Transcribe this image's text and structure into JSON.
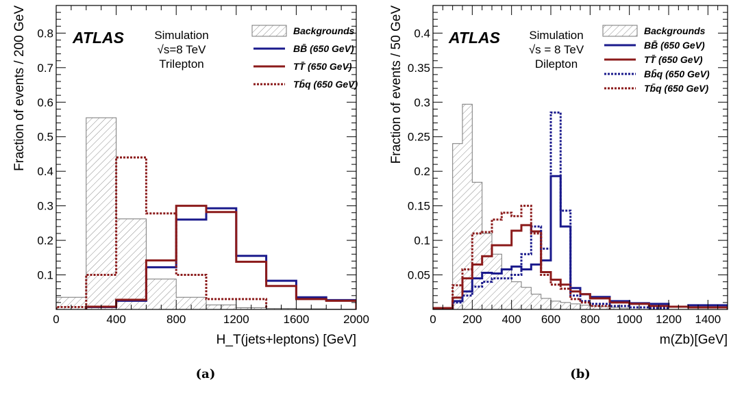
{
  "chart_data": [
    {
      "type": "histogram",
      "panel_label": "(a)",
      "xlabel": "H_T(jets+leptons) [GeV]",
      "ylabel": "Fraction of events / 200 GeV",
      "xlim": [
        0,
        2000
      ],
      "ylim": [
        0,
        0.88
      ],
      "xticks": [
        0,
        400,
        800,
        1200,
        1600,
        2000
      ],
      "xtick_labels": [
        "0",
        "400",
        "800",
        "1200",
        "1600",
        "2000"
      ],
      "yticks": [
        0.1,
        0.2,
        0.3,
        0.4,
        0.5,
        0.6,
        0.7,
        0.8
      ],
      "ytick_labels": [
        "0.1",
        "0.2",
        "0.3",
        "0.4",
        "0.5",
        "0.6",
        "0.7",
        "0.8"
      ],
      "brand": "ATLAS",
      "info_lines": [
        "Simulation",
        "√s=8 TeV",
        "Trilepton"
      ],
      "legend_position": "top-right",
      "series": [
        {
          "name": "Backgrounds",
          "style": "hatched",
          "color": "#777777",
          "edges": [
            0,
            200,
            400,
            600,
            800,
            1000,
            1200,
            1400,
            1600,
            1800,
            2000
          ],
          "values": [
            0.035,
            0.555,
            0.262,
            0.088,
            0.035,
            0.013,
            0.005,
            0.003,
            0.002,
            0.001
          ]
        },
        {
          "name": "BB̄ (650 GeV)",
          "style": "solid",
          "color": "#1a1a8c",
          "edges": [
            200,
            400,
            600,
            800,
            1000,
            1200,
            1400,
            1600,
            1800,
            2000
          ],
          "values": [
            0.007,
            0.025,
            0.122,
            0.26,
            0.293,
            0.155,
            0.083,
            0.035,
            0.027
          ]
        },
        {
          "name": "TT̄ (650 GeV)",
          "style": "solid",
          "color": "#8b1a1a",
          "edges": [
            200,
            400,
            600,
            800,
            1000,
            1200,
            1400,
            1600,
            1800,
            2000
          ],
          "values": [
            0.008,
            0.028,
            0.142,
            0.3,
            0.282,
            0.138,
            0.068,
            0.03,
            0.025
          ]
        },
        {
          "name": "Tb̄q (650 GeV)",
          "style": "dotted",
          "color": "#8b1a1a",
          "edges": [
            0,
            200,
            400,
            600,
            800,
            1000,
            1200,
            1400
          ],
          "values": [
            0.007,
            0.1,
            0.44,
            0.278,
            0.1,
            0.03,
            0.03
          ]
        }
      ]
    },
    {
      "type": "histogram",
      "panel_label": "(b)",
      "xlabel": "m(Zb)[GeV]",
      "ylabel": "Fraction of events / 50 GeV",
      "xlim": [
        0,
        1500
      ],
      "ylim": [
        0,
        0.44
      ],
      "xticks": [
        0,
        200,
        400,
        600,
        800,
        1000,
        1200,
        1400
      ],
      "xtick_labels": [
        "0",
        "200",
        "400",
        "600",
        "800",
        "1000",
        "1200",
        "1400"
      ],
      "yticks": [
        0.05,
        0.1,
        0.15,
        0.2,
        0.25,
        0.3,
        0.35,
        0.4
      ],
      "ytick_labels": [
        "0.05",
        "0.1",
        "0.15",
        "0.2",
        "0.25",
        "0.3",
        "0.35",
        "0.4"
      ],
      "brand": "ATLAS",
      "info_lines": [
        "Simulation",
        "√s = 8 TeV",
        "Dilepton"
      ],
      "legend_position": "top-right",
      "series": [
        {
          "name": "Backgrounds",
          "style": "hatched",
          "color": "#777777",
          "edges": [
            100,
            150,
            200,
            250,
            300,
            350,
            400,
            450,
            500,
            550,
            600,
            650,
            700,
            750,
            800,
            850,
            900,
            950,
            1000
          ],
          "values": [
            0.24,
            0.297,
            0.184,
            0.11,
            0.08,
            0.058,
            0.04,
            0.032,
            0.022,
            0.016,
            0.012,
            0.01,
            0.008,
            0.006,
            0.005,
            0.004,
            0.003,
            0.002
          ]
        },
        {
          "name": "BB̄ (650 GeV)",
          "style": "solid",
          "color": "#1a1a8c",
          "edges": [
            0,
            100,
            150,
            200,
            250,
            300,
            350,
            400,
            450,
            500,
            550,
            600,
            650,
            700,
            750,
            800,
            900,
            1000,
            1100,
            1200,
            1300,
            1400,
            1500
          ],
          "values": [
            0.002,
            0.012,
            0.026,
            0.045,
            0.053,
            0.052,
            0.058,
            0.062,
            0.058,
            0.065,
            0.071,
            0.193,
            0.12,
            0.031,
            0.022,
            0.018,
            0.012,
            0.009,
            0.008,
            0.004,
            0.006,
            0.006
          ]
        },
        {
          "name": "TT̄ (650 GeV)",
          "style": "solid",
          "color": "#8b1a1a",
          "edges": [
            0,
            100,
            150,
            200,
            250,
            300,
            350,
            400,
            450,
            500,
            550,
            600,
            650,
            700,
            750,
            800,
            900,
            1000,
            1100,
            1200,
            1300,
            1400,
            1500
          ],
          "values": [
            0.002,
            0.017,
            0.045,
            0.065,
            0.077,
            0.093,
            0.093,
            0.114,
            0.122,
            0.113,
            0.054,
            0.043,
            0.036,
            0.026,
            0.022,
            0.016,
            0.01,
            0.008,
            0.005,
            0.004,
            0.003,
            0.003
          ]
        },
        {
          "name": "Bb̄q (650 GeV)",
          "style": "dotted",
          "color": "#1a1a8c",
          "edges": [
            100,
            150,
            200,
            250,
            300,
            350,
            400,
            450,
            500,
            550,
            600,
            650,
            700,
            750,
            800,
            900,
            1000,
            1100,
            1200
          ],
          "values": [
            0.01,
            0.02,
            0.033,
            0.04,
            0.045,
            0.045,
            0.05,
            0.08,
            0.12,
            0.088,
            0.285,
            0.143,
            0.02,
            0.012,
            0.008,
            0.005,
            0.003,
            0.002
          ]
        },
        {
          "name": "Tb̄q (650 GeV)",
          "style": "dotted",
          "color": "#8b1a1a",
          "edges": [
            100,
            150,
            200,
            250,
            300,
            350,
            400,
            450,
            500,
            550,
            600,
            650,
            700,
            750,
            800,
            900
          ],
          "values": [
            0.035,
            0.058,
            0.11,
            0.112,
            0.13,
            0.14,
            0.135,
            0.15,
            0.11,
            0.05,
            0.036,
            0.03,
            0.015,
            0.01,
            0.005
          ]
        }
      ]
    }
  ]
}
